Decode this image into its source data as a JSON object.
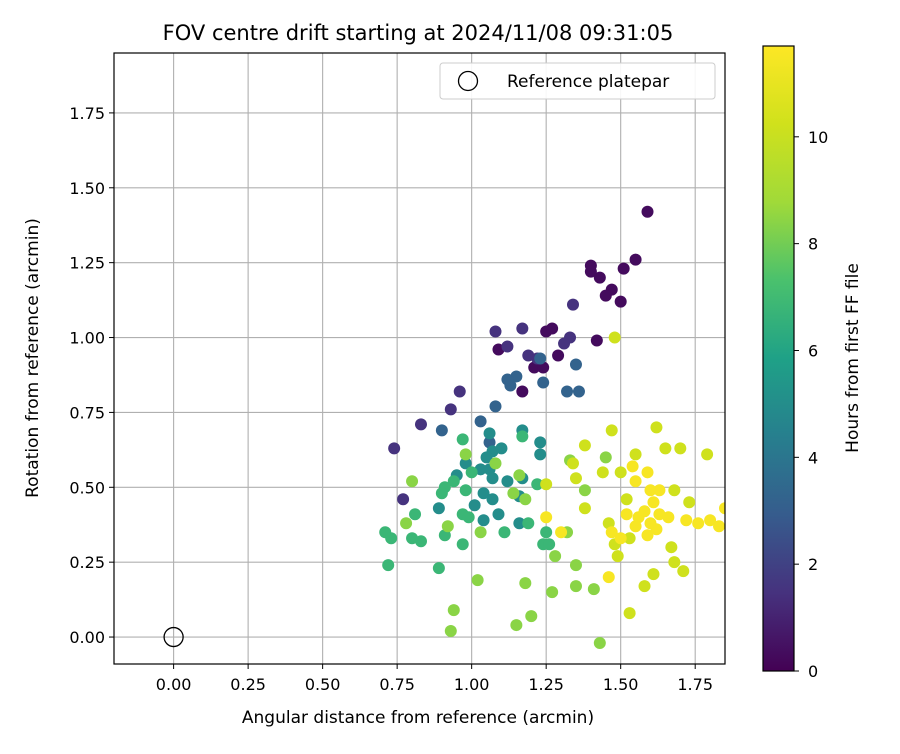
{
  "chart_data": {
    "type": "scatter",
    "title": "FOV centre drift starting at 2024/11/08 09:31:05",
    "xlabel": "Angular distance from reference (arcmin)",
    "ylabel": "Rotation from reference (arcmin)",
    "xlim": [
      -0.2,
      1.85
    ],
    "ylim": [
      -0.09,
      1.95
    ],
    "xticks": [
      "0.00",
      "0.25",
      "0.50",
      "0.75",
      "1.00",
      "1.25",
      "1.50",
      "1.75"
    ],
    "yticks": [
      "0.00",
      "0.25",
      "0.50",
      "0.75",
      "1.00",
      "1.25",
      "1.50",
      "1.75"
    ],
    "grid": true,
    "legend": {
      "placement": "top-right",
      "entries": [
        "Reference platepar"
      ]
    },
    "reference_point": {
      "x": 0.0,
      "y": 0.0,
      "label": "Reference platepar",
      "marker": "hollow-circle"
    },
    "colorbar": {
      "label": "Hours from first FF file",
      "colormap": "viridis",
      "range": [
        0,
        11.7
      ],
      "ticks": [
        "0",
        "2",
        "4",
        "6",
        "8",
        "10"
      ]
    },
    "series": [
      {
        "hours": 0.3,
        "points": [
          [
            1.59,
            1.42
          ],
          [
            1.4,
            1.24
          ],
          [
            1.4,
            1.22
          ],
          [
            1.51,
            1.23
          ],
          [
            1.55,
            1.26
          ],
          [
            1.47,
            1.16
          ],
          [
            1.45,
            1.14
          ],
          [
            1.5,
            1.12
          ],
          [
            1.43,
            1.2
          ],
          [
            1.42,
            0.99
          ],
          [
            1.29,
            0.94
          ],
          [
            1.25,
            1.02
          ],
          [
            1.27,
            1.03
          ],
          [
            1.09,
            0.96
          ],
          [
            1.21,
            0.9
          ],
          [
            1.24,
            0.9
          ],
          [
            1.17,
            0.82
          ]
        ]
      },
      {
        "hours": 1.5,
        "points": [
          [
            1.34,
            1.11
          ],
          [
            1.33,
            1.0
          ],
          [
            1.31,
            0.98
          ],
          [
            1.08,
            1.02
          ],
          [
            1.12,
            0.97
          ],
          [
            1.17,
            1.03
          ],
          [
            1.19,
            0.94
          ],
          [
            1.22,
            0.93
          ],
          [
            0.96,
            0.82
          ],
          [
            0.93,
            0.76
          ],
          [
            0.83,
            0.71
          ],
          [
            0.74,
            0.63
          ],
          [
            0.77,
            0.46
          ]
        ]
      },
      {
        "hours": 3.2,
        "points": [
          [
            1.35,
            0.91
          ],
          [
            1.23,
            0.93
          ],
          [
            1.13,
            0.84
          ],
          [
            1.15,
            0.87
          ],
          [
            1.12,
            0.86
          ],
          [
            1.24,
            0.85
          ],
          [
            1.32,
            0.82
          ],
          [
            1.36,
            0.82
          ],
          [
            1.08,
            0.77
          ],
          [
            0.9,
            0.69
          ],
          [
            1.06,
            0.65
          ],
          [
            1.03,
            0.72
          ]
        ]
      },
      {
        "hours": 5.0,
        "points": [
          [
            1.06,
            0.68
          ],
          [
            1.07,
            0.62
          ],
          [
            1.1,
            0.63
          ],
          [
            1.05,
            0.6
          ],
          [
            1.17,
            0.69
          ],
          [
            1.23,
            0.65
          ],
          [
            1.23,
            0.61
          ],
          [
            1.06,
            0.56
          ],
          [
            1.03,
            0.56
          ],
          [
            0.98,
            0.58
          ],
          [
            1.04,
            0.48
          ],
          [
            0.95,
            0.54
          ],
          [
            1.07,
            0.53
          ],
          [
            1.07,
            0.46
          ],
          [
            1.12,
            0.52
          ],
          [
            1.17,
            0.53
          ],
          [
            1.09,
            0.41
          ],
          [
            1.16,
            0.47
          ],
          [
            1.01,
            0.44
          ],
          [
            1.04,
            0.39
          ],
          [
            1.16,
            0.38
          ],
          [
            0.89,
            0.43
          ]
        ]
      },
      {
        "hours": 6.8,
        "points": [
          [
            0.97,
            0.66
          ],
          [
            1.17,
            0.67
          ],
          [
            0.91,
            0.5
          ],
          [
            0.9,
            0.48
          ],
          [
            0.98,
            0.49
          ],
          [
            0.94,
            0.52
          ],
          [
            1.0,
            0.55
          ],
          [
            0.97,
            0.41
          ],
          [
            0.99,
            0.4
          ],
          [
            0.91,
            0.34
          ],
          [
            0.97,
            0.31
          ],
          [
            0.89,
            0.23
          ],
          [
            1.11,
            0.35
          ],
          [
            1.19,
            0.38
          ],
          [
            1.24,
            0.31
          ],
          [
            1.26,
            0.31
          ],
          [
            1.25,
            0.35
          ],
          [
            1.22,
            0.51
          ],
          [
            0.71,
            0.35
          ],
          [
            0.73,
            0.33
          ],
          [
            0.8,
            0.33
          ],
          [
            0.83,
            0.32
          ],
          [
            0.81,
            0.41
          ],
          [
            0.72,
            0.24
          ]
        ]
      },
      {
        "hours": 8.4,
        "points": [
          [
            0.98,
            0.61
          ],
          [
            1.08,
            0.58
          ],
          [
            1.16,
            0.54
          ],
          [
            1.14,
            0.48
          ],
          [
            1.18,
            0.46
          ],
          [
            1.32,
            0.35
          ],
          [
            1.33,
            0.59
          ],
          [
            0.8,
            0.52
          ],
          [
            0.78,
            0.38
          ],
          [
            0.92,
            0.37
          ],
          [
            1.03,
            0.35
          ],
          [
            1.02,
            0.19
          ],
          [
            0.94,
            0.09
          ],
          [
            0.93,
            0.02
          ],
          [
            1.18,
            0.18
          ],
          [
            1.27,
            0.15
          ],
          [
            1.28,
            0.27
          ],
          [
            1.35,
            0.24
          ],
          [
            1.35,
            0.17
          ],
          [
            1.15,
            0.04
          ],
          [
            1.2,
            0.07
          ],
          [
            1.41,
            0.16
          ],
          [
            1.43,
            -0.02
          ],
          [
            1.38,
            0.49
          ],
          [
            1.45,
            0.6
          ]
        ]
      },
      {
        "hours": 10.2,
        "points": [
          [
            1.48,
            1.0
          ],
          [
            1.38,
            0.64
          ],
          [
            1.34,
            0.58
          ],
          [
            1.35,
            0.53
          ],
          [
            1.25,
            0.51
          ],
          [
            1.38,
            0.43
          ],
          [
            1.46,
            0.38
          ],
          [
            1.44,
            0.55
          ],
          [
            1.47,
            0.69
          ],
          [
            1.5,
            0.55
          ],
          [
            1.55,
            0.61
          ],
          [
            1.52,
            0.46
          ],
          [
            1.53,
            0.33
          ],
          [
            1.48,
            0.31
          ],
          [
            1.49,
            0.27
          ],
          [
            1.53,
            0.08
          ],
          [
            1.58,
            0.17
          ],
          [
            1.61,
            0.21
          ],
          [
            1.62,
            0.7
          ],
          [
            1.65,
            0.63
          ],
          [
            1.7,
            0.63
          ],
          [
            1.68,
            0.49
          ],
          [
            1.67,
            0.3
          ],
          [
            1.68,
            0.25
          ],
          [
            1.71,
            0.22
          ],
          [
            1.73,
            0.45
          ],
          [
            1.79,
            0.61
          ]
        ]
      },
      {
        "hours": 11.5,
        "points": [
          [
            1.54,
            0.57
          ],
          [
            1.55,
            0.52
          ],
          [
            1.59,
            0.55
          ],
          [
            1.6,
            0.49
          ],
          [
            1.63,
            0.49
          ],
          [
            1.61,
            0.45
          ],
          [
            1.58,
            0.42
          ],
          [
            1.56,
            0.4
          ],
          [
            1.6,
            0.38
          ],
          [
            1.62,
            0.36
          ],
          [
            1.55,
            0.37
          ],
          [
            1.59,
            0.34
          ],
          [
            1.63,
            0.41
          ],
          [
            1.66,
            0.4
          ],
          [
            1.72,
            0.39
          ],
          [
            1.76,
            0.38
          ],
          [
            1.8,
            0.39
          ],
          [
            1.83,
            0.37
          ],
          [
            1.85,
            0.43
          ],
          [
            1.47,
            0.35
          ],
          [
            1.52,
            0.41
          ],
          [
            1.5,
            0.33
          ],
          [
            1.46,
            0.2
          ],
          [
            1.25,
            0.4
          ],
          [
            1.3,
            0.35
          ]
        ]
      }
    ]
  }
}
